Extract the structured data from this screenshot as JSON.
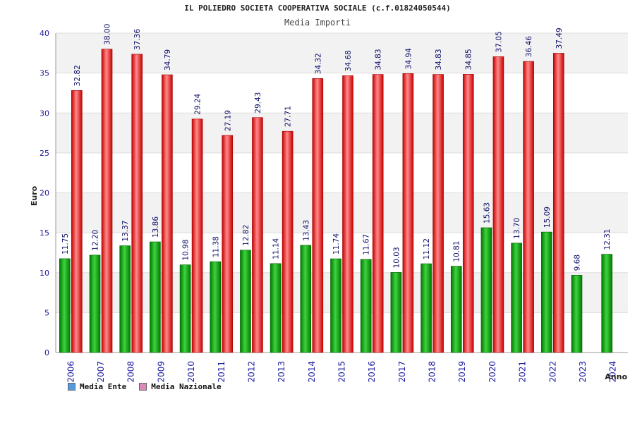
{
  "chart_data": {
    "type": "bar",
    "title": "IL POLIEDRO SOCIETA COOPERATIVA SOCIALE (c.f.01824050544)",
    "subtitle": "Media Importi",
    "xlabel": "Anno",
    "ylabel": "Euro",
    "ylim": [
      0,
      40
    ],
    "yticks": [
      0,
      5,
      10,
      15,
      20,
      25,
      30,
      35,
      40
    ],
    "grid": true,
    "legend_position": "bottom-left",
    "categories": [
      "2006",
      "2007",
      "2008",
      "2009",
      "2010",
      "2011",
      "2012",
      "2013",
      "2014",
      "2015",
      "2016",
      "2017",
      "2018",
      "2019",
      "2020",
      "2021",
      "2022",
      "2023",
      "2024"
    ],
    "series": [
      {
        "name": "Media Ente",
        "color": "#00a000",
        "legend_color": "#5599dd",
        "values": [
          11.75,
          12.2,
          13.37,
          13.86,
          10.98,
          11.38,
          12.82,
          11.14,
          13.43,
          11.74,
          11.67,
          10.03,
          11.12,
          10.81,
          15.63,
          13.7,
          15.09,
          9.68,
          12.31
        ],
        "labels": [
          "11.75",
          "12.20",
          "13.37",
          "13.86",
          "10.98",
          "11.38",
          "12.82",
          "11.14",
          "13.43",
          "11.74",
          "11.67",
          "10.03",
          "11.12",
          "10.81",
          "15.63",
          "13.70",
          "15.09",
          "9.68",
          "12.31"
        ]
      },
      {
        "name": "Media Nazionale",
        "color": "#e02020",
        "legend_color": "#dd88bb",
        "values": [
          32.82,
          38.0,
          37.36,
          34.79,
          29.24,
          27.19,
          29.43,
          27.71,
          34.32,
          34.68,
          34.83,
          34.94,
          34.83,
          34.85,
          37.05,
          36.46,
          37.49,
          null,
          null
        ],
        "labels": [
          "32.82",
          "38.00",
          "37.36",
          "34.79",
          "29.24",
          "27.19",
          "29.43",
          "27.71",
          "34.32",
          "34.68",
          "34.83",
          "34.94",
          "34.83",
          "34.85",
          "37.05",
          "36.46",
          "37.49",
          "",
          ""
        ]
      }
    ]
  }
}
